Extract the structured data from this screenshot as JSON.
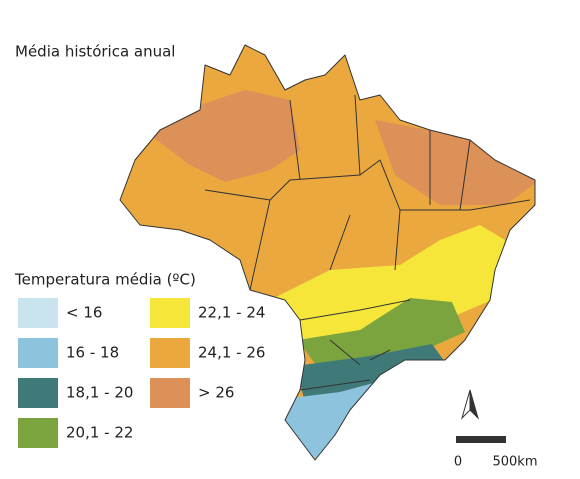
{
  "title": "Média histórica anual",
  "legend": {
    "title": "Temperatura média (ºC)",
    "items": [
      {
        "label": "< 16",
        "color": "#c9e3ef"
      },
      {
        "label": "16 - 18",
        "color": "#8ec3de"
      },
      {
        "label": "18,1 - 20",
        "color": "#3f7a78"
      },
      {
        "label": "20,1 - 22",
        "color": "#7ba33e"
      },
      {
        "label": "22,1 - 24",
        "color": "#f6e63a"
      },
      {
        "label": "24,1 - 26",
        "color": "#eaa83e"
      },
      {
        "label": "> 26",
        "color": "#dc9158"
      }
    ]
  },
  "scale": {
    "start": "0",
    "end": "500km"
  }
}
